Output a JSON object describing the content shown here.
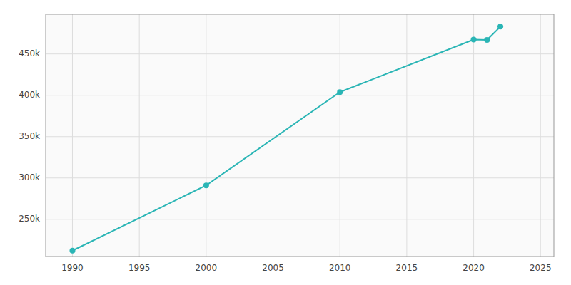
{
  "chart_data": {
    "type": "line",
    "x": [
      1990,
      2000,
      2010,
      2020,
      2021,
      2022
    ],
    "values": [
      212092,
      291000,
      403892,
      467394,
      467000,
      483056
    ],
    "color": "#2ab5b5",
    "marker": "circle",
    "xlim": [
      1988,
      2026
    ],
    "ylim": [
      205000,
      498000
    ],
    "xticks": [
      1990,
      1995,
      2000,
      2005,
      2010,
      2015,
      2020,
      2025
    ],
    "yticks": [
      {
        "value": 250000,
        "label": "250k"
      },
      {
        "value": 300000,
        "label": "300k"
      },
      {
        "value": 350000,
        "label": "350k"
      },
      {
        "value": 400000,
        "label": "400k"
      },
      {
        "value": 450000,
        "label": "450k"
      }
    ],
    "grid": true
  }
}
